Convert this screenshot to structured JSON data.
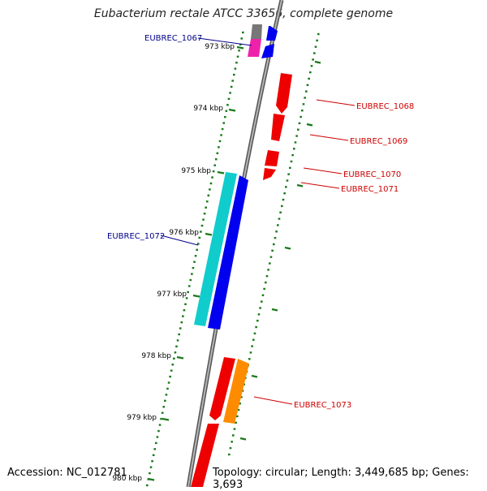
{
  "title": "Eubacterium rectale ATCC 33656, complete genome",
  "accession_text": "Accession: NC_012781",
  "topology_text": "Topology: circular; Length: 3,449,685 bp; Genes: 3,693",
  "colors": {
    "backbone": "#7f7f7f",
    "tick": "#1a7a1a",
    "gene_forward_red": "#ee0000",
    "gene_blue": "#0000ee",
    "gene_cyan": "#11cccc",
    "gene_magenta": "#ee22aa",
    "gene_orange": "#ff8c00",
    "gene_gray": "#777777",
    "label_blue": "#00008b",
    "label_red": "#cc0000"
  },
  "scale_ticks": [
    {
      "label": "973 kbp"
    },
    {
      "label": "974 kbp"
    },
    {
      "label": "975 kbp"
    },
    {
      "label": "976 kbp"
    },
    {
      "label": "977 kbp"
    },
    {
      "label": "978 kbp"
    },
    {
      "label": "979 kbp"
    },
    {
      "label": "980 kbp"
    }
  ],
  "gene_labels": [
    {
      "name": "EUBREC_1067",
      "strand": "reverse"
    },
    {
      "name": "EUBREC_1068",
      "strand": "forward"
    },
    {
      "name": "EUBREC_1069",
      "strand": "forward"
    },
    {
      "name": "EUBREC_1070",
      "strand": "forward"
    },
    {
      "name": "EUBREC_1071",
      "strand": "forward"
    },
    {
      "name": "EUBREC_1072",
      "strand": "reverse"
    },
    {
      "name": "EUBREC_1073",
      "strand": "forward"
    }
  ]
}
